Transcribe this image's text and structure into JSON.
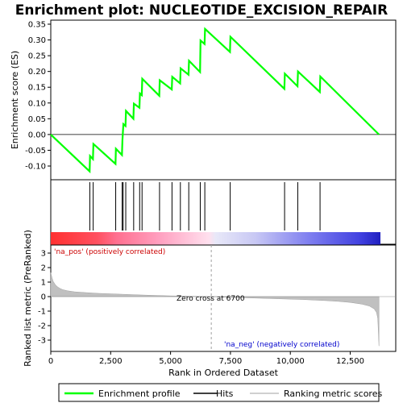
{
  "chart_data": {
    "type": "line",
    "title": "Enrichment plot: NUCLEOTIDE_EXCISION_REPAIR",
    "top_panel": {
      "ylabel": "Enrichment score (ES)",
      "ylim": [
        -0.15,
        0.35
      ],
      "yticks": [
        "-0.10",
        "-0.05",
        "0.00",
        "0.05",
        "0.10",
        "0.15",
        "0.20",
        "0.25",
        "0.30",
        "0.35"
      ],
      "ytick_values": [
        -0.1,
        -0.05,
        0.0,
        0.05,
        0.1,
        0.15,
        0.2,
        0.25,
        0.3,
        0.35
      ],
      "series": [
        {
          "name": "Enrichment profile",
          "color": "#00ff00",
          "x": [
            0,
            1620,
            1640,
            1760,
            1780,
            2700,
            2720,
            2970,
            2990,
            3010,
            3030,
            3120,
            3140,
            3450,
            3470,
            3700,
            3720,
            3800,
            3820,
            4530,
            4550,
            5050,
            5070,
            5400,
            5420,
            5750,
            5770,
            6230,
            6250,
            6420,
            6440,
            7480,
            7500,
            9750,
            9770,
            10300,
            10320,
            11230,
            11250,
            13700
          ],
          "y": [
            0.0,
            -0.117,
            -0.068,
            -0.078,
            -0.03,
            -0.093,
            -0.045,
            -0.065,
            -0.018,
            0.008,
            0.033,
            0.027,
            0.075,
            0.05,
            0.098,
            0.085,
            0.13,
            0.125,
            0.177,
            0.123,
            0.172,
            0.143,
            0.183,
            0.162,
            0.21,
            0.19,
            0.234,
            0.198,
            0.298,
            0.287,
            0.335,
            0.262,
            0.31,
            0.145,
            0.193,
            0.153,
            0.2,
            0.135,
            0.184,
            0.0
          ]
        }
      ]
    },
    "hits": [
      1630,
      1770,
      2710,
      2980,
      3020,
      3130,
      3460,
      3710,
      3810,
      4540,
      5060,
      5410,
      5760,
      6240,
      6430,
      7490,
      9760,
      10310,
      11240
    ],
    "bottom_panel": {
      "ylabel": "Ranked list metric (PreRanked)",
      "ylim": [
        -3.5,
        3.5
      ],
      "yticks": [
        "-3",
        "-2",
        "-1",
        "0",
        "1",
        "2",
        "3"
      ],
      "ytick_values": [
        -3,
        -2,
        -1,
        0,
        1,
        2,
        3
      ],
      "xlabel": "Rank in Ordered Dataset",
      "xlim": [
        0,
        14400
      ],
      "xticks": [
        "0",
        "2,500",
        "5,000",
        "7,500",
        "10,000",
        "12,500"
      ],
      "xtick_values": [
        0,
        2500,
        5000,
        7500,
        10000,
        12500
      ],
      "metric_x": [
        0,
        50,
        100,
        200,
        300,
        400,
        500,
        700,
        1000,
        1500,
        2000,
        3000,
        4000,
        5000,
        6000,
        6700,
        7500,
        8500,
        9500,
        10500,
        11500,
        12000,
        12500,
        13000,
        13300,
        13500,
        13600,
        13650,
        13700
      ],
      "metric_y": [
        1.65,
        1.3,
        1.05,
        0.8,
        0.65,
        0.55,
        0.48,
        0.4,
        0.33,
        0.27,
        0.22,
        0.16,
        0.1,
        0.05,
        0.02,
        0.0,
        -0.05,
        -0.1,
        -0.15,
        -0.2,
        -0.28,
        -0.33,
        -0.4,
        -0.52,
        -0.65,
        -0.85,
        -1.1,
        -1.5,
        -3.4
      ],
      "zero_cross_label": "Zero cross at 6700",
      "zero_cross_x": 6700,
      "pos_label": "'na_pos' (positively correlated)",
      "neg_label": "'na_neg' (negatively correlated)",
      "pos_color": "#ff0000",
      "neg_color": "#0000ff"
    },
    "legend": {
      "placement": "bottom",
      "entries": [
        "Enrichment profile",
        "Hits",
        "Ranking metric scores"
      ]
    }
  }
}
